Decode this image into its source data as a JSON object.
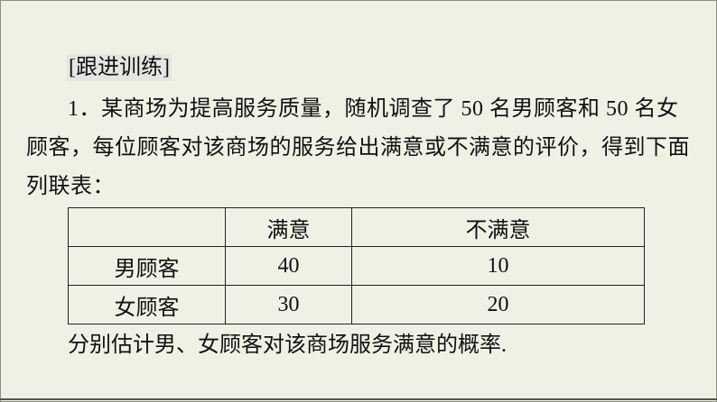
{
  "section_tag": "[跟进训练]",
  "problem_text": "1．某商场为提高服务质量，随机调查了 50 名男顾客和 50 名女顾客，每位顾客对该商场的服务给出满意或不满意的评价，得到下面列联表：",
  "table": {
    "headers": [
      "",
      "满意",
      "不满意"
    ],
    "rows": [
      [
        "男顾客",
        "40",
        "10"
      ],
      [
        "女顾客",
        "30",
        "20"
      ]
    ]
  },
  "question": "分别估计男、女顾客对该商场服务满意的概率."
}
